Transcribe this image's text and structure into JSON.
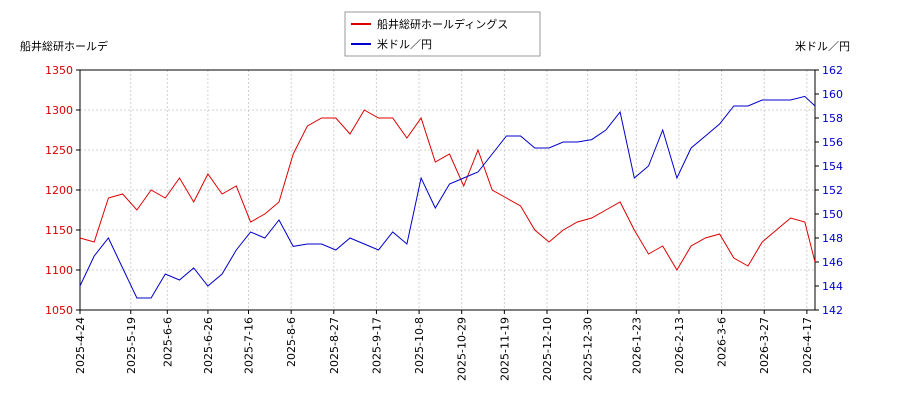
{
  "chart_data": {
    "type": "line",
    "y_label": "船井総研ホールデ",
    "y2_label": "米ドル／円",
    "x": [
      "2025-4-24",
      "2025-5-1",
      "2025-5-8",
      "2025-5-15",
      "2025-5-22",
      "2025-5-29",
      "2025-6-5",
      "2025-6-12",
      "2025-6-19",
      "2025-6-26",
      "2025-7-3",
      "2025-7-10",
      "2025-7-17",
      "2025-7-24",
      "2025-7-31",
      "2025-8-7",
      "2025-8-14",
      "2025-8-21",
      "2025-8-28",
      "2025-9-4",
      "2025-9-11",
      "2025-9-18",
      "2025-9-25",
      "2025-10-2",
      "2025-10-9",
      "2025-10-16",
      "2025-10-23",
      "2025-10-30",
      "2025-11-6",
      "2025-11-13",
      "2025-11-20",
      "2025-11-27",
      "2025-12-4",
      "2025-12-11",
      "2025-12-18",
      "2025-12-25",
      "2026-1-1",
      "2026-1-8",
      "2026-1-15",
      "2026-1-22",
      "2026-1-29",
      "2026-2-5",
      "2026-2-12",
      "2026-2-19",
      "2026-2-26",
      "2026-3-5",
      "2026-3-12",
      "2026-3-19",
      "2026-3-26",
      "2026-4-2",
      "2026-4-9",
      "2026-4-16",
      "2026-4-21"
    ],
    "xlim": [
      "2025-4-24",
      "2026-4-21"
    ],
    "xticks": [
      "2025-4-24",
      "2025-5-19",
      "2025-6-6",
      "2025-6-26",
      "2025-7-16",
      "2025-8-6",
      "2025-8-27",
      "2025-9-17",
      "2025-10-8",
      "2025-10-29",
      "2025-11-19",
      "2025-12-10",
      "2025-12-30",
      "2026-1-23",
      "2026-2-13",
      "2026-3-6",
      "2026-3-27",
      "2026-4-17"
    ],
    "ylim": [
      1050,
      1350
    ],
    "yticks": [
      1050,
      1100,
      1150,
      1200,
      1250,
      1300,
      1350
    ],
    "y2lim": [
      142,
      162
    ],
    "y2ticks": [
      142,
      144,
      146,
      148,
      150,
      152,
      154,
      156,
      158,
      160,
      162
    ],
    "grid": true,
    "legend": "top",
    "series": [
      {
        "name": "船井総研ホールディングス",
        "color": "#dd0000",
        "axis": "y",
        "values": [
          1140,
          1135,
          1190,
          1195,
          1175,
          1200,
          1190,
          1215,
          1185,
          1220,
          1195,
          1205,
          1160,
          1170,
          1185,
          1245,
          1280,
          1290,
          1290,
          1270,
          1300,
          1290,
          1290,
          1265,
          1290,
          1235,
          1245,
          1205,
          1250,
          1200,
          1190,
          1180,
          1150,
          1135,
          1150,
          1160,
          1165,
          1175,
          1185,
          1150,
          1120,
          1130,
          1100,
          1130,
          1140,
          1145,
          1115,
          1105,
          1135,
          1150,
          1165,
          1160,
          1110
        ]
      },
      {
        "name": "米ドル／円",
        "color": "#0000cc",
        "axis": "y2",
        "values": [
          144,
          146.5,
          148,
          145.5,
          143,
          143,
          145,
          144.5,
          145.5,
          144,
          145,
          147,
          148.5,
          148,
          149.5,
          147.3,
          147.5,
          147.5,
          147,
          148,
          147.5,
          147,
          148.5,
          147.5,
          153,
          150.5,
          152.5,
          153,
          153.5,
          155,
          156.5,
          156.5,
          155.5,
          155.5,
          156,
          156,
          156.2,
          157,
          158.5,
          153,
          154,
          157,
          153,
          155.5,
          156.5,
          157.5,
          159,
          159,
          159.5,
          159.5,
          159.5,
          159.8,
          159
        ]
      }
    ]
  }
}
